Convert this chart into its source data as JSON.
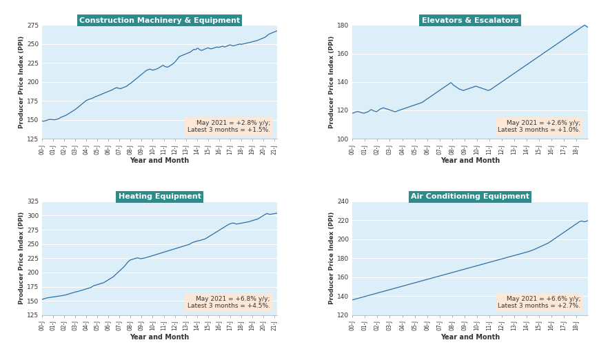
{
  "charts": [
    {
      "title": "Construction Machinery & Equipment",
      "annotation": "May 2021 = +2.8% y/y;\nLatest 3 months = +1.5%.",
      "ylim": [
        125,
        275
      ],
      "yticks": [
        125,
        150,
        175,
        200,
        225,
        250,
        275
      ],
      "ylabel": "Producer Price Index (PPI)",
      "xlabel": "Year and Month",
      "data": [
        148.5,
        148.3,
        148.2,
        148.5,
        149.0,
        149.2,
        149.8,
        150.2,
        150.5,
        150.4,
        150.5,
        150.3,
        150.1,
        150.2,
        150.0,
        150.3,
        150.5,
        151.0,
        151.5,
        152.0,
        153.0,
        153.5,
        154.0,
        154.5,
        155.0,
        155.5,
        156.0,
        156.8,
        157.5,
        158.2,
        159.0,
        159.8,
        160.5,
        161.2,
        162.0,
        162.8,
        163.5,
        164.5,
        165.5,
        166.5,
        167.5,
        168.5,
        169.5,
        170.5,
        171.5,
        172.5,
        173.5,
        174.5,
        175.5,
        176.0,
        176.5,
        177.0,
        177.5,
        177.8,
        178.2,
        178.8,
        179.5,
        180.0,
        180.5,
        181.0,
        181.5,
        182.0,
        182.5,
        183.0,
        183.5,
        184.0,
        184.5,
        185.0,
        185.5,
        186.0,
        186.5,
        187.0,
        187.5,
        188.0,
        188.5,
        189.0,
        189.5,
        190.0,
        191.0,
        191.5,
        192.0,
        192.5,
        192.0,
        191.5,
        191.5,
        191.0,
        191.5,
        192.0,
        192.5,
        193.0,
        193.5,
        194.0,
        194.5,
        195.5,
        196.5,
        197.5,
        198.0,
        199.0,
        200.0,
        201.0,
        202.0,
        203.0,
        204.0,
        205.0,
        206.0,
        207.0,
        208.0,
        209.0,
        210.0,
        211.0,
        212.0,
        213.0,
        214.0,
        215.0,
        215.5,
        216.0,
        216.5,
        217.0,
        216.5,
        216.0,
        215.5,
        215.8,
        216.2,
        216.5,
        217.0,
        217.5,
        218.0,
        218.8,
        219.5,
        220.3,
        221.0,
        221.8,
        221.5,
        220.5,
        220.0,
        219.8,
        219.5,
        220.0,
        220.8,
        221.5,
        222.2,
        223.0,
        224.0,
        225.0,
        226.0,
        227.5,
        229.0,
        230.5,
        232.0,
        233.5,
        234.0,
        234.5,
        235.0,
        235.5,
        236.0,
        236.5,
        237.0,
        237.5,
        238.0,
        238.5,
        239.0,
        239.5,
        240.5,
        241.5,
        242.5,
        243.0,
        242.5,
        243.0,
        244.0,
        244.5,
        243.5,
        242.5,
        242.0,
        241.5,
        242.0,
        242.5,
        243.0,
        243.5,
        244.0,
        244.5,
        245.0,
        244.5,
        244.0,
        243.5,
        243.8,
        244.2,
        244.6,
        245.0,
        245.4,
        245.8,
        246.0,
        245.5,
        245.8,
        246.2,
        246.5,
        246.8,
        247.0,
        246.5,
        246.0,
        246.5,
        247.0,
        247.5,
        248.0,
        248.5,
        249.0,
        248.5,
        248.0,
        247.5,
        247.8,
        248.2,
        248.5,
        248.8,
        249.2,
        249.5,
        249.8,
        250.0,
        249.5,
        249.8,
        250.2,
        250.5,
        250.8,
        251.0,
        251.2,
        251.5,
        251.8,
        252.0,
        252.3,
        252.5,
        253.0,
        253.3,
        253.6,
        253.9,
        254.2,
        254.5,
        255.0,
        255.5,
        256.0,
        256.5,
        257.0,
        257.5,
        258.0,
        258.5,
        259.0,
        260.0,
        261.0,
        262.0,
        263.0,
        263.5,
        264.0,
        264.5,
        265.0,
        265.5,
        266.0,
        266.5,
        267.0,
        267.5
      ]
    },
    {
      "title": "Elevators & Escalators",
      "annotation": "May 2021 = +2.6% y/y;\nLatest 3 months = +1.0%.",
      "ylim": [
        100,
        180
      ],
      "yticks": [
        100,
        120,
        140,
        160,
        180
      ],
      "ylabel": "Producer Price Index (PPI)",
      "xlabel": "Year and Month",
      "data": [
        118.0,
        118.2,
        118.5,
        118.8,
        119.0,
        119.2,
        119.0,
        118.8,
        118.5,
        118.3,
        118.2,
        118.0,
        118.2,
        118.5,
        118.8,
        119.0,
        119.5,
        120.0,
        120.5,
        120.2,
        119.8,
        119.5,
        119.3,
        119.0,
        119.5,
        120.0,
        120.5,
        121.0,
        121.3,
        121.5,
        121.8,
        121.5,
        121.2,
        121.0,
        120.8,
        120.5,
        120.3,
        120.0,
        119.8,
        119.5,
        119.3,
        119.0,
        119.2,
        119.5,
        119.8,
        120.0,
        120.3,
        120.5,
        120.8,
        121.0,
        121.3,
        121.5,
        121.8,
        122.0,
        122.3,
        122.5,
        122.8,
        123.0,
        123.3,
        123.5,
        123.8,
        124.0,
        124.3,
        124.5,
        124.8,
        125.0,
        125.3,
        125.5,
        126.0,
        126.5,
        127.0,
        127.5,
        128.0,
        128.5,
        129.0,
        129.5,
        130.0,
        130.5,
        131.0,
        131.5,
        132.0,
        132.5,
        133.0,
        133.5,
        134.0,
        134.5,
        135.0,
        135.5,
        136.0,
        136.5,
        137.0,
        137.5,
        138.0,
        138.5,
        139.0,
        139.5,
        139.0,
        138.0,
        137.5,
        137.0,
        136.5,
        136.0,
        135.5,
        135.0,
        134.8,
        134.5,
        134.2,
        134.0,
        134.2,
        134.5,
        134.8,
        135.0,
        135.2,
        135.5,
        135.8,
        136.0,
        136.2,
        136.5,
        136.8,
        137.0,
        136.8,
        136.5,
        136.2,
        136.0,
        135.8,
        135.5,
        135.2,
        135.0,
        134.8,
        134.5,
        134.2,
        134.0,
        134.2,
        134.5,
        135.0,
        135.5,
        136.0,
        136.5,
        137.0,
        137.5,
        138.0,
        138.5,
        139.0,
        139.5,
        140.0,
        140.5,
        141.0,
        141.5,
        142.0,
        142.5,
        143.0,
        143.5,
        144.0,
        144.5,
        145.0,
        145.5,
        146.0,
        146.5,
        147.0,
        147.5,
        148.0,
        148.5,
        149.0,
        149.5,
        150.0,
        150.5,
        151.0,
        151.5,
        152.0,
        152.5,
        153.0,
        153.5,
        154.0,
        154.5,
        155.0,
        155.5,
        156.0,
        156.5,
        157.0,
        157.5,
        158.0,
        158.5,
        159.0,
        159.5,
        160.0,
        160.5,
        161.0,
        161.5,
        162.0,
        162.5,
        163.0,
        163.5,
        164.0,
        164.5,
        165.0,
        165.5,
        166.0,
        166.5,
        167.0,
        167.5,
        168.0,
        168.5,
        169.0,
        169.5,
        170.0,
        170.5,
        171.0,
        171.5,
        172.0,
        172.5,
        173.0,
        173.5,
        174.0,
        174.5,
        175.0,
        175.5,
        176.0,
        176.5,
        177.0,
        177.5,
        178.0,
        178.5,
        179.0,
        179.5,
        180.0,
        179.5,
        179.0,
        178.5
      ]
    },
    {
      "title": "Heating Equipment",
      "annotation": "May 2021 = +6.8% y/y;\nLatest 3 months = +4.5%.",
      "ylim": [
        125,
        325
      ],
      "yticks": [
        125,
        150,
        175,
        200,
        225,
        250,
        275,
        300,
        325
      ],
      "ylabel": "Producer Price Index (PPI)",
      "xlabel": "Year and Month",
      "data": [
        152.5,
        153.0,
        153.5,
        154.0,
        154.5,
        155.0,
        155.2,
        155.5,
        155.8,
        156.0,
        156.3,
        156.5,
        156.8,
        157.0,
        157.2,
        157.5,
        157.8,
        158.0,
        158.3,
        158.5,
        158.8,
        159.0,
        159.2,
        159.5,
        159.8,
        160.0,
        160.5,
        161.0,
        161.5,
        162.0,
        162.5,
        163.0,
        163.5,
        164.0,
        164.5,
        165.0,
        165.5,
        165.8,
        166.2,
        166.5,
        167.0,
        167.5,
        168.0,
        168.5,
        169.0,
        169.5,
        170.0,
        170.5,
        171.0,
        171.5,
        172.0,
        172.5,
        173.0,
        173.5,
        174.5,
        175.5,
        176.5,
        177.0,
        177.5,
        178.0,
        178.5,
        179.0,
        179.5,
        180.0,
        180.5,
        181.0,
        181.5,
        182.0,
        183.0,
        184.0,
        185.0,
        186.0,
        187.0,
        188.0,
        189.0,
        190.0,
        191.0,
        192.0,
        193.5,
        195.0,
        196.5,
        198.0,
        199.5,
        201.0,
        202.5,
        204.0,
        205.5,
        207.0,
        208.5,
        210.0,
        212.0,
        214.0,
        216.0,
        218.0,
        219.5,
        221.0,
        222.0,
        222.5,
        223.0,
        223.5,
        224.0,
        224.5,
        225.0,
        225.3,
        225.6,
        225.0,
        224.5,
        224.0,
        224.3,
        224.6,
        225.0,
        225.3,
        225.6,
        226.0,
        226.5,
        227.0,
        227.5,
        228.0,
        228.5,
        229.0,
        229.5,
        230.0,
        230.5,
        231.0,
        231.5,
        232.0,
        232.5,
        233.0,
        233.5,
        234.0,
        234.5,
        235.0,
        235.5,
        236.0,
        236.5,
        237.0,
        237.5,
        238.0,
        238.5,
        239.0,
        239.5,
        240.0,
        240.5,
        241.0,
        241.5,
        242.0,
        242.5,
        243.0,
        243.5,
        244.0,
        244.5,
        245.0,
        245.5,
        246.0,
        246.5,
        247.0,
        247.5,
        248.0,
        248.5,
        249.0,
        249.5,
        250.5,
        251.5,
        252.5,
        253.0,
        253.5,
        254.0,
        254.5,
        255.0,
        255.5,
        255.8,
        256.2,
        256.5,
        257.0,
        257.5,
        258.0,
        258.5,
        259.0,
        260.0,
        261.0,
        262.0,
        263.0,
        264.0,
        265.0,
        266.0,
        267.0,
        268.0,
        269.0,
        270.0,
        271.0,
        272.0,
        273.0,
        274.0,
        275.0,
        276.0,
        277.0,
        278.0,
        279.0,
        280.0,
        281.0,
        282.0,
        283.0,
        284.0,
        285.0,
        285.5,
        286.0,
        286.5,
        286.8,
        286.5,
        286.0,
        285.5,
        285.0,
        285.3,
        285.6,
        285.9,
        286.2,
        286.5,
        286.8,
        287.2,
        287.5,
        287.8,
        288.0,
        288.3,
        288.5,
        289.0,
        289.5,
        290.0,
        290.5,
        291.0,
        291.5,
        292.0,
        292.5,
        293.0,
        293.5,
        294.0,
        295.0,
        296.0,
        297.0,
        298.0,
        299.0,
        300.0,
        301.0,
        302.0,
        303.0,
        303.5,
        303.0,
        302.5,
        302.0,
        302.3,
        302.6,
        302.9,
        303.2,
        303.5,
        303.8,
        304.0,
        304.2
      ]
    },
    {
      "title": "Air Conditioning Equipment",
      "annotation": "May 2021 = +6.6% y/y;\nLatest 3 months = +2.7%.",
      "ylim": [
        120,
        240
      ],
      "yticks": [
        120,
        140,
        160,
        180,
        200,
        220,
        240
      ],
      "ylabel": "Producer Price Index (PPI)",
      "xlabel": "Year and Month",
      "data": [
        136.0,
        136.3,
        136.6,
        136.9,
        137.2,
        137.5,
        137.8,
        138.1,
        138.4,
        138.7,
        139.0,
        139.3,
        139.6,
        139.9,
        140.2,
        140.5,
        140.8,
        141.1,
        141.4,
        141.7,
        142.0,
        142.3,
        142.6,
        142.9,
        143.2,
        143.5,
        143.8,
        144.1,
        144.4,
        144.7,
        145.0,
        145.3,
        145.6,
        145.9,
        146.2,
        146.5,
        146.8,
        147.1,
        147.4,
        147.7,
        148.0,
        148.3,
        148.6,
        148.9,
        149.2,
        149.5,
        149.8,
        150.1,
        150.4,
        150.7,
        151.0,
        151.3,
        151.6,
        151.9,
        152.2,
        152.5,
        152.8,
        153.1,
        153.4,
        153.7,
        154.0,
        154.3,
        154.6,
        154.9,
        155.2,
        155.5,
        155.8,
        156.1,
        156.4,
        156.7,
        157.0,
        157.3,
        157.6,
        157.9,
        158.2,
        158.5,
        158.8,
        159.1,
        159.4,
        159.7,
        160.0,
        160.3,
        160.6,
        160.9,
        161.2,
        161.5,
        161.8,
        162.1,
        162.4,
        162.7,
        163.0,
        163.3,
        163.6,
        163.9,
        164.2,
        164.5,
        164.8,
        165.1,
        165.4,
        165.7,
        166.0,
        166.3,
        166.6,
        166.9,
        167.2,
        167.5,
        167.8,
        168.1,
        168.4,
        168.7,
        169.0,
        169.3,
        169.6,
        169.9,
        170.2,
        170.5,
        170.8,
        171.1,
        171.4,
        171.7,
        172.0,
        172.3,
        172.6,
        172.9,
        173.2,
        173.5,
        173.8,
        174.1,
        174.4,
        174.7,
        175.0,
        175.3,
        175.6,
        175.9,
        176.2,
        176.5,
        176.8,
        177.1,
        177.4,
        177.7,
        178.0,
        178.3,
        178.6,
        178.9,
        179.2,
        179.5,
        179.8,
        180.1,
        180.4,
        180.7,
        181.0,
        181.3,
        181.6,
        181.9,
        182.2,
        182.5,
        182.8,
        183.1,
        183.4,
        183.7,
        184.0,
        184.3,
        184.6,
        184.9,
        185.2,
        185.5,
        185.8,
        186.1,
        186.4,
        186.7,
        187.0,
        187.4,
        187.8,
        188.2,
        188.6,
        189.0,
        189.5,
        190.0,
        190.5,
        191.0,
        191.5,
        192.0,
        192.5,
        193.0,
        193.5,
        194.0,
        194.5,
        195.0,
        195.5,
        196.0,
        196.8,
        197.5,
        198.2,
        199.0,
        199.8,
        200.5,
        201.2,
        202.0,
        202.8,
        203.5,
        204.2,
        205.0,
        205.8,
        206.5,
        207.2,
        208.0,
        208.8,
        209.5,
        210.2,
        211.0,
        211.8,
        212.5,
        213.2,
        214.0,
        214.8,
        215.5,
        216.2,
        217.0,
        217.8,
        218.5,
        219.0,
        219.3,
        219.0,
        218.7,
        218.5,
        218.8,
        219.2,
        219.5
      ]
    }
  ],
  "line_color": "#2e6da4",
  "bg_color": "#dceef8",
  "title_bg": "#2d8b8b",
  "title_fg": "#ffffff",
  "annotation_bg": "#fde8d8",
  "annotation_fg": "#333333",
  "grid_color": "#ffffff",
  "figure_bg": "#ffffff",
  "n_years": 22
}
